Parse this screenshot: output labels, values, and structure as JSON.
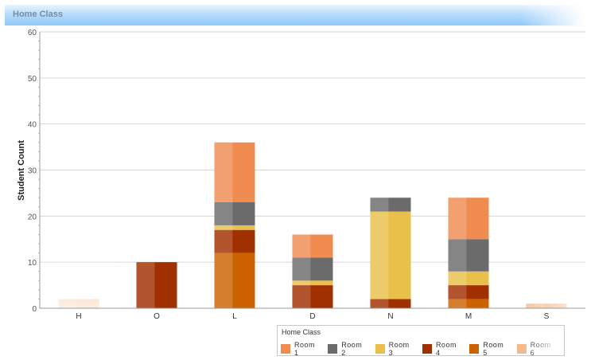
{
  "header": {
    "title": "Home Class"
  },
  "colors": {
    "Room 1": "#f08c50",
    "Room 2": "#6b6b6b",
    "Room 3": "#e8c04a",
    "Room 4": "#a13000",
    "Room 5": "#cc6200",
    "Room 6": "#f4b889"
  },
  "chart_data": {
    "type": "bar",
    "stacked": true,
    "categories": [
      "H",
      "O",
      "L",
      "D",
      "N",
      "M",
      "S"
    ],
    "ylabel": "Student Count",
    "ylim": [
      0,
      60
    ],
    "yticks": [
      0,
      10,
      20,
      30,
      40,
      50,
      60
    ],
    "grid": true,
    "legend_title": "Home Class",
    "legend_position": "bottom-right",
    "series": [
      {
        "name": "Room 5",
        "values": [
          0,
          0,
          12,
          0,
          0,
          2,
          0
        ]
      },
      {
        "name": "Room 4",
        "values": [
          0,
          10,
          5,
          5,
          2,
          3,
          0
        ]
      },
      {
        "name": "Room 3",
        "values": [
          0,
          0,
          1,
          1,
          19,
          3,
          0
        ]
      },
      {
        "name": "Room 2",
        "values": [
          0,
          0,
          5,
          5,
          3,
          7,
          0
        ]
      },
      {
        "name": "Room 1",
        "values": [
          0,
          0,
          13,
          5,
          0,
          9,
          0
        ]
      },
      {
        "name": "Room 6",
        "values": [
          2,
          0,
          0,
          0,
          0,
          0,
          1
        ]
      }
    ],
    "legend": [
      "Room 1",
      "Room 2",
      "Room 3",
      "Room 4",
      "Room 5",
      "Room 6"
    ]
  }
}
